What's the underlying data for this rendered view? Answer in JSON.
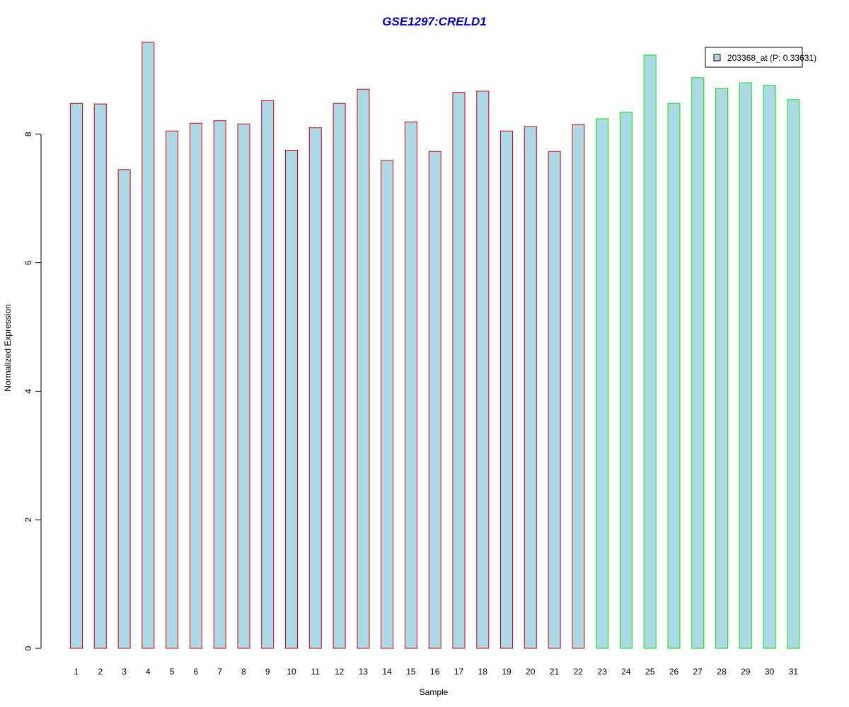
{
  "chart_data": {
    "type": "bar",
    "title": "GSE1297:CRELD1",
    "xlabel": "Sample",
    "ylabel": "Normalized Expression",
    "ylim": [
      0,
      9.5
    ],
    "yticks": [
      "0",
      "2",
      "4",
      "6",
      "8"
    ],
    "categories": [
      "1",
      "2",
      "3",
      "4",
      "5",
      "6",
      "7",
      "8",
      "9",
      "10",
      "11",
      "12",
      "13",
      "14",
      "15",
      "16",
      "17",
      "18",
      "19",
      "20",
      "21",
      "22",
      "23",
      "24",
      "25",
      "26",
      "27",
      "28",
      "29",
      "30",
      "31"
    ],
    "series": [
      {
        "name": "203368_at (P: 0.33631)",
        "values": [
          8.48,
          8.47,
          7.45,
          9.43,
          8.05,
          8.17,
          8.21,
          8.16,
          8.52,
          7.75,
          8.1,
          8.48,
          8.7,
          7.59,
          8.19,
          7.73,
          8.65,
          8.67,
          8.05,
          8.12,
          7.73,
          8.15,
          8.24,
          8.34,
          9.23,
          8.48,
          8.88,
          8.71,
          8.8,
          8.76,
          8.54
        ]
      }
    ],
    "groups": [
      0,
      0,
      0,
      0,
      0,
      0,
      0,
      0,
      0,
      0,
      0,
      0,
      0,
      0,
      0,
      0,
      0,
      0,
      0,
      0,
      0,
      0,
      1,
      1,
      1,
      1,
      1,
      1,
      1,
      1,
      1
    ],
    "legend": {
      "position": "top-right",
      "label": "203368_at (P: 0.33631)"
    },
    "grid": false,
    "colors": {
      "bar_fill": "#add8e6",
      "group_0_border": "#dd0000",
      "group_1_border": "#00ee00",
      "title": "#0000cc",
      "axis": "#000000"
    }
  }
}
